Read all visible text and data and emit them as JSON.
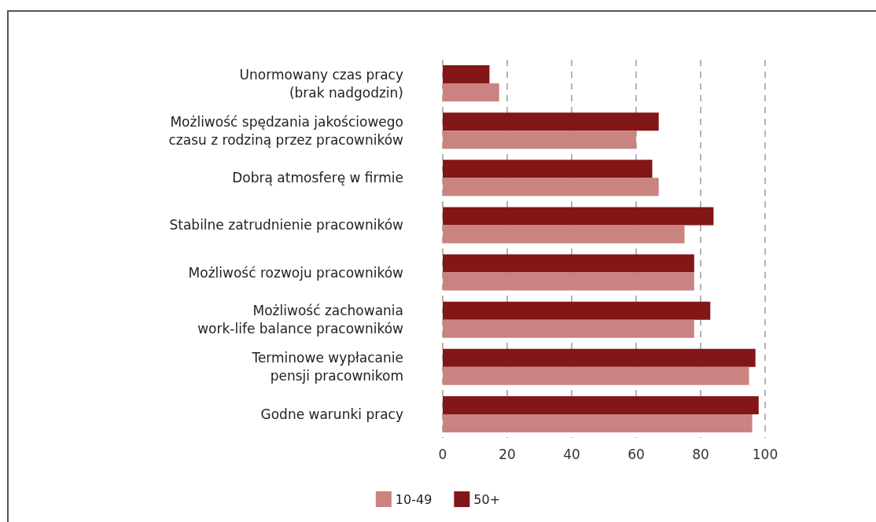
{
  "chart_data": {
    "type": "bar",
    "orientation": "horizontal",
    "categories": [
      "Unormowany czas pracy\n(brak nadgodzin)",
      "Możliwość spędzania jakościowego\nczasu z rodziną przez pracowników",
      "Dobrą atmosferę w firmie",
      "Stabilne zatrudnienie pracowników",
      "Możliwość rozwoju pracowników",
      "Możliwość zachowania\nwork-life balance pracowników",
      "Terminowe wypłacanie\npensji pracownikom",
      "Godne warunki pracy"
    ],
    "series": [
      {
        "name": "10-49",
        "color": "#c98380",
        "values": [
          17.5,
          60,
          67,
          75,
          78,
          78,
          95,
          96
        ]
      },
      {
        "name": "50+",
        "color": "#831616",
        "values": [
          14.5,
          67,
          65,
          84,
          78,
          83,
          97,
          98
        ]
      }
    ],
    "xlim": [
      0,
      100
    ],
    "xticks": [
      0,
      20,
      40,
      60,
      80,
      100
    ],
    "grid": "x",
    "legend": "bottom"
  }
}
